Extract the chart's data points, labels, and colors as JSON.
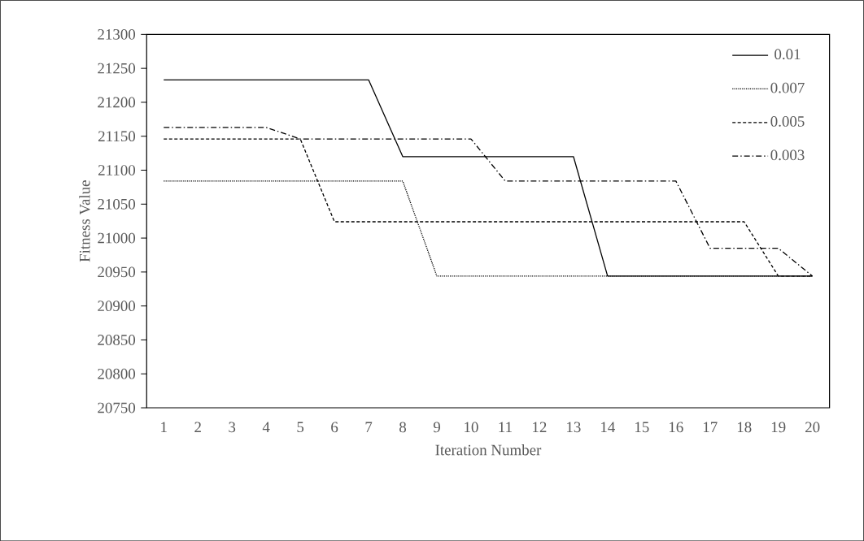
{
  "chart_data": {
    "type": "line",
    "xlabel": "Iteration Number",
    "ylabel": "Fitness Value",
    "categories": [
      "1",
      "2",
      "3",
      "4",
      "5",
      "6",
      "7",
      "8",
      "9",
      "10",
      "11",
      "12",
      "13",
      "14",
      "15",
      "16",
      "17",
      "18",
      "19",
      "20"
    ],
    "ylim": [
      20750,
      21300
    ],
    "yticks": [
      20750,
      20800,
      20850,
      20900,
      20950,
      21000,
      21050,
      21100,
      21150,
      21200,
      21250,
      21300
    ],
    "legend": "top right",
    "grid": false,
    "marker": "none",
    "series": [
      {
        "name": "0.01",
        "color": "#000000",
        "line_style": "solid",
        "values": [
          21233,
          21233,
          21233,
          21233,
          21233,
          21233,
          21233,
          21120,
          21120,
          21120,
          21120,
          21120,
          21120,
          20944,
          20944,
          20944,
          20944,
          20944,
          20944,
          20944
        ]
      },
      {
        "name": "0.007",
        "color": "#000000",
        "line_style": "dotted",
        "values": [
          21084,
          21084,
          21084,
          21084,
          21084,
          21084,
          21084,
          21084,
          20944,
          20944,
          20944,
          20944,
          20944,
          20944,
          20944,
          20944,
          20944,
          20944,
          20944,
          20944
        ]
      },
      {
        "name": "0.005",
        "color": "#000000",
        "line_style": "dashed",
        "values": [
          21146,
          21146,
          21146,
          21146,
          21146,
          21024,
          21024,
          21024,
          21024,
          21024,
          21024,
          21024,
          21024,
          21024,
          21024,
          21024,
          21024,
          21024,
          20944,
          20944
        ]
      },
      {
        "name": "0.003",
        "color": "#000000",
        "line_style": "dashdot",
        "values": [
          21163,
          21163,
          21163,
          21163,
          21146,
          21146,
          21146,
          21146,
          21146,
          21146,
          21084,
          21084,
          21084,
          21084,
          21084,
          21084,
          20985,
          20985,
          20985,
          20944
        ]
      }
    ]
  }
}
